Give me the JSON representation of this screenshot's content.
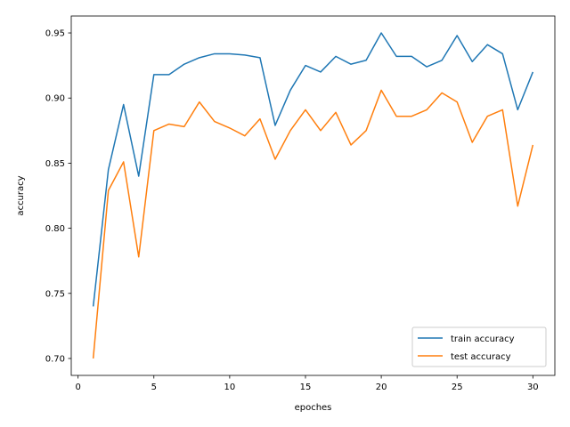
{
  "chart_data": {
    "type": "line",
    "xlabel": "epoches",
    "ylabel": "accuracy",
    "xlim": [
      -0.45,
      31.45
    ],
    "ylim": [
      0.687,
      0.963
    ],
    "x_ticks": [
      0,
      5,
      10,
      15,
      20,
      25,
      30
    ],
    "y_ticks": [
      0.7,
      0.75,
      0.8,
      0.85,
      0.9,
      0.95
    ],
    "legend": "lower-right",
    "grid": false,
    "x": [
      1,
      2,
      3,
      4,
      5,
      6,
      7,
      8,
      9,
      10,
      11,
      12,
      13,
      14,
      15,
      16,
      17,
      18,
      19,
      20,
      21,
      22,
      23,
      24,
      25,
      26,
      27,
      28,
      29,
      30
    ],
    "series": [
      {
        "name": "train accuracy",
        "color": "#1f77b4",
        "values": [
          0.74,
          0.845,
          0.895,
          0.84,
          0.918,
          0.918,
          0.926,
          0.931,
          0.934,
          0.934,
          0.933,
          0.931,
          0.879,
          0.906,
          0.925,
          0.92,
          0.932,
          0.926,
          0.929,
          0.95,
          0.932,
          0.932,
          0.924,
          0.929,
          0.948,
          0.928,
          0.941,
          0.934,
          0.891,
          0.92
        ]
      },
      {
        "name": "test accuracy",
        "color": "#ff7f0e",
        "values": [
          0.7,
          0.829,
          0.851,
          0.778,
          0.875,
          0.88,
          0.878,
          0.897,
          0.882,
          0.877,
          0.871,
          0.884,
          0.853,
          0.875,
          0.891,
          0.875,
          0.889,
          0.864,
          0.875,
          0.906,
          0.886,
          0.886,
          0.891,
          0.904,
          0.897,
          0.866,
          0.886,
          0.891,
          0.817,
          0.864
        ]
      }
    ]
  }
}
